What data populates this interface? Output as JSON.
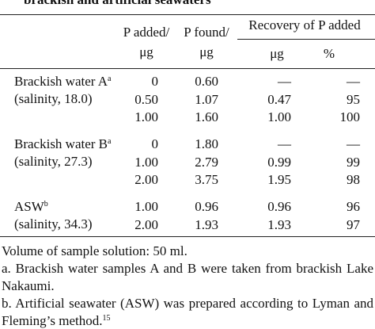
{
  "caption": "brackish and artificial seawaters",
  "table": {
    "header": {
      "p_added": [
        "P added/",
        "μg"
      ],
      "p_found": [
        "P found/",
        "μg"
      ],
      "recovery": "Recovery of P added",
      "recovery_ug": "μg",
      "recovery_pct": "%"
    },
    "groups": [
      {
        "label": "Brackish water A",
        "sup": "a",
        "sublabel": "(salinity, 18.0)",
        "rows": [
          [
            "0",
            "0.60",
            "—",
            "—"
          ],
          [
            "0.50",
            "1.07",
            "0.47",
            "95"
          ],
          [
            "1.00",
            "1.60",
            "1.00",
            "100"
          ]
        ]
      },
      {
        "label": "Brackish water B",
        "sup": "a",
        "sublabel": "(salinity, 27.3)",
        "rows": [
          [
            "0",
            "1.80",
            "—",
            "—"
          ],
          [
            "1.00",
            "2.79",
            "0.99",
            "99"
          ],
          [
            "2.00",
            "3.75",
            "1.95",
            "98"
          ]
        ]
      },
      {
        "label": "ASW",
        "sup": "b",
        "sublabel": "(salinity, 34.3)",
        "rows": [
          [
            "1.00",
            "0.96",
            "0.96",
            "96"
          ],
          [
            "2.00",
            "1.93",
            "1.93",
            "97"
          ]
        ]
      }
    ]
  },
  "notes": [
    {
      "text": "Volume of sample solution: 50 ml."
    },
    {
      "text": "a. Brackish water samples A and B were taken from brackish Lake Nakaumi."
    },
    {
      "text": "b. Artificial seawater (ASW) was prepared according to Lyman and Fleming’s method.",
      "sup": "15"
    }
  ]
}
